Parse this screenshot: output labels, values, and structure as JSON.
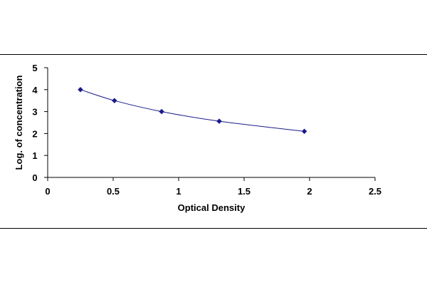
{
  "chart_data": {
    "type": "scatter",
    "title": "",
    "xlabel": "Optical Density",
    "ylabel": "Log. of concentration",
    "xlim": [
      0,
      2.5
    ],
    "ylim": [
      0,
      5
    ],
    "xticks": [
      "0",
      "0.5",
      "1",
      "1.5",
      "2",
      "2.5"
    ],
    "yticks": [
      "0",
      "1",
      "2",
      "3",
      "4",
      "5"
    ],
    "grid": false,
    "legend": "none",
    "series": [
      {
        "x": [
          0.25,
          0.51,
          0.87,
          1.31,
          1.96
        ],
        "y": [
          4.0,
          3.5,
          3.0,
          2.56,
          2.1
        ],
        "marker": "diamond",
        "marker_color": "#1a1a8c",
        "line_color": "#1a1a8c",
        "line": "smooth"
      }
    ]
  }
}
